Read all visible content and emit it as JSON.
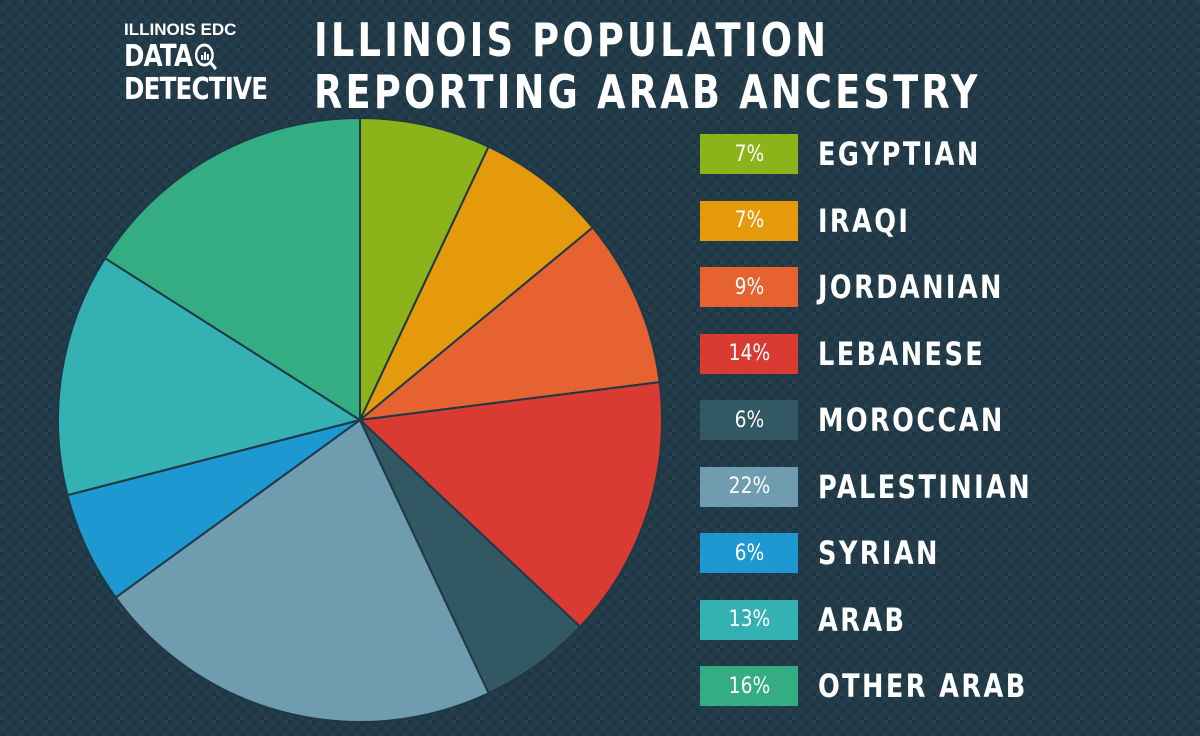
{
  "logo": {
    "line1": "ILLINOIS EDC",
    "line2": "DATA",
    "line3": "DETECTIVE"
  },
  "chart_data": {
    "type": "pie",
    "title": "ILLINOIS POPULATION REPORTING ARAB ANCESTRY",
    "categories": [
      "EGYPTIAN",
      "IRAQI",
      "JORDANIAN",
      "LEBANESE",
      "MOROCCAN",
      "PALESTINIAN",
      "SYRIAN",
      "ARAB",
      "OTHER ARAB"
    ],
    "values": [
      7,
      7,
      9,
      14,
      6,
      22,
      6,
      13,
      16
    ],
    "value_labels": [
      "7%",
      "7%",
      "9%",
      "14%",
      "6%",
      "22%",
      "6%",
      "13%",
      "16%"
    ],
    "colors": [
      "#8db31a",
      "#e59a0c",
      "#e66231",
      "#d93b33",
      "#325863",
      "#6f9caf",
      "#1d98d0",
      "#34b1b3",
      "#34ad83"
    ],
    "legend_position": "right"
  }
}
